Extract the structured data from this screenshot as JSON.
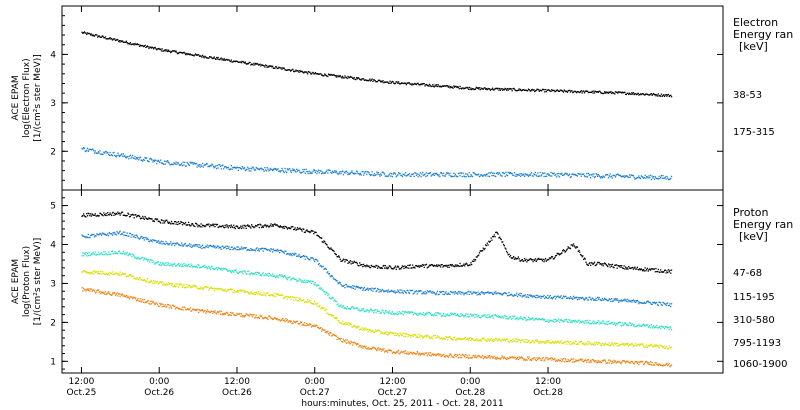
{
  "chart_data": [
    {
      "type": "scatter",
      "panel": "electron",
      "ylabel_lines": [
        "ACE EPAM",
        "log(Electron Flux)",
        "[1/(cm²s ster MeV)]"
      ],
      "ylim": [
        1.2,
        5.0
      ],
      "yticks": [
        2,
        3,
        4
      ],
      "legend_title": [
        "Electron",
        "Energy ran",
        "[keV]"
      ],
      "series": [
        {
          "name": "38-53",
          "color": "#000000",
          "x": [
            0,
            12,
            24,
            36,
            48,
            60,
            72,
            84,
            91
          ],
          "y": [
            4.45,
            4.1,
            3.85,
            3.6,
            3.42,
            3.3,
            3.25,
            3.2,
            3.15
          ]
        },
        {
          "name": "175-315",
          "color": "#1e7fd0",
          "x": [
            0,
            12,
            24,
            36,
            48,
            60,
            72,
            84,
            91
          ],
          "y": [
            2.05,
            1.78,
            1.65,
            1.58,
            1.52,
            1.52,
            1.52,
            1.48,
            1.45
          ]
        }
      ]
    },
    {
      "type": "scatter",
      "panel": "proton",
      "ylabel_lines": [
        "ACE EPAM",
        "log(Proton Flux)",
        "[1/(cm²s ster MeV)]"
      ],
      "ylim": [
        0.7,
        5.4
      ],
      "yticks": [
        1,
        2,
        3,
        4,
        5
      ],
      "legend_title": [
        "Proton",
        "Energy ran",
        "[keV]"
      ],
      "series": [
        {
          "name": "47-68",
          "color": "#000000",
          "x": [
            0,
            6,
            12,
            18,
            24,
            30,
            36,
            40,
            44,
            48,
            52,
            56,
            60,
            64,
            66,
            68,
            72,
            76,
            78,
            80,
            84,
            88,
            91
          ],
          "y": [
            4.75,
            4.8,
            4.6,
            4.5,
            4.45,
            4.5,
            4.3,
            3.6,
            3.45,
            3.4,
            3.45,
            3.45,
            3.5,
            4.3,
            3.7,
            3.6,
            3.6,
            4.0,
            3.5,
            3.5,
            3.4,
            3.35,
            3.3
          ]
        },
        {
          "name": "115-195",
          "color": "#1e7fd0",
          "x": [
            0,
            6,
            12,
            18,
            24,
            30,
            36,
            40,
            44,
            48,
            56,
            64,
            72,
            80,
            88,
            91
          ],
          "y": [
            4.2,
            4.3,
            4.05,
            3.95,
            3.9,
            3.85,
            3.6,
            2.95,
            2.85,
            2.8,
            2.75,
            2.75,
            2.65,
            2.6,
            2.5,
            2.45
          ]
        },
        {
          "name": "310-580",
          "color": "#2ee0c4",
          "x": [
            0,
            6,
            12,
            18,
            24,
            30,
            36,
            40,
            44,
            48,
            56,
            64,
            72,
            80,
            88,
            91
          ],
          "y": [
            3.75,
            3.8,
            3.5,
            3.45,
            3.3,
            3.2,
            3.0,
            2.4,
            2.3,
            2.25,
            2.2,
            2.15,
            2.05,
            2.0,
            1.9,
            1.85
          ]
        },
        {
          "name": "795-1193",
          "color": "#d8e000",
          "x": [
            0,
            6,
            12,
            18,
            24,
            30,
            36,
            40,
            44,
            48,
            56,
            64,
            72,
            80,
            88,
            91
          ],
          "y": [
            3.3,
            3.25,
            3.0,
            2.9,
            2.8,
            2.7,
            2.5,
            2.0,
            1.8,
            1.7,
            1.6,
            1.55,
            1.5,
            1.45,
            1.4,
            1.35
          ]
        },
        {
          "name": "1060-1900",
          "color": "#f08010",
          "x": [
            0,
            6,
            12,
            18,
            24,
            30,
            36,
            40,
            44,
            48,
            56,
            64,
            72,
            80,
            88,
            91
          ],
          "y": [
            2.85,
            2.7,
            2.45,
            2.3,
            2.2,
            2.1,
            1.9,
            1.55,
            1.35,
            1.25,
            1.15,
            1.1,
            1.05,
            1.0,
            0.95,
            0.9
          ]
        }
      ]
    }
  ],
  "x_axis": {
    "range_hours": [
      -3,
      99
    ],
    "ticks": [
      {
        "x": 0,
        "time": "12:00",
        "date": "Oct.25"
      },
      {
        "x": 12,
        "time": "0:00",
        "date": "Oct.26"
      },
      {
        "x": 24,
        "time": "12:00",
        "date": "Oct.26"
      },
      {
        "x": 36,
        "time": "0:00",
        "date": "Oct.27"
      },
      {
        "x": 48,
        "time": "12:00",
        "date": "Oct.27"
      },
      {
        "x": 60,
        "time": "0:00",
        "date": "Oct.28"
      },
      {
        "x": 72,
        "time": "12:00",
        "date": "Oct.28"
      }
    ],
    "label": "hours:minutes, Oct. 25, 2011 - Oct. 28, 2011"
  }
}
